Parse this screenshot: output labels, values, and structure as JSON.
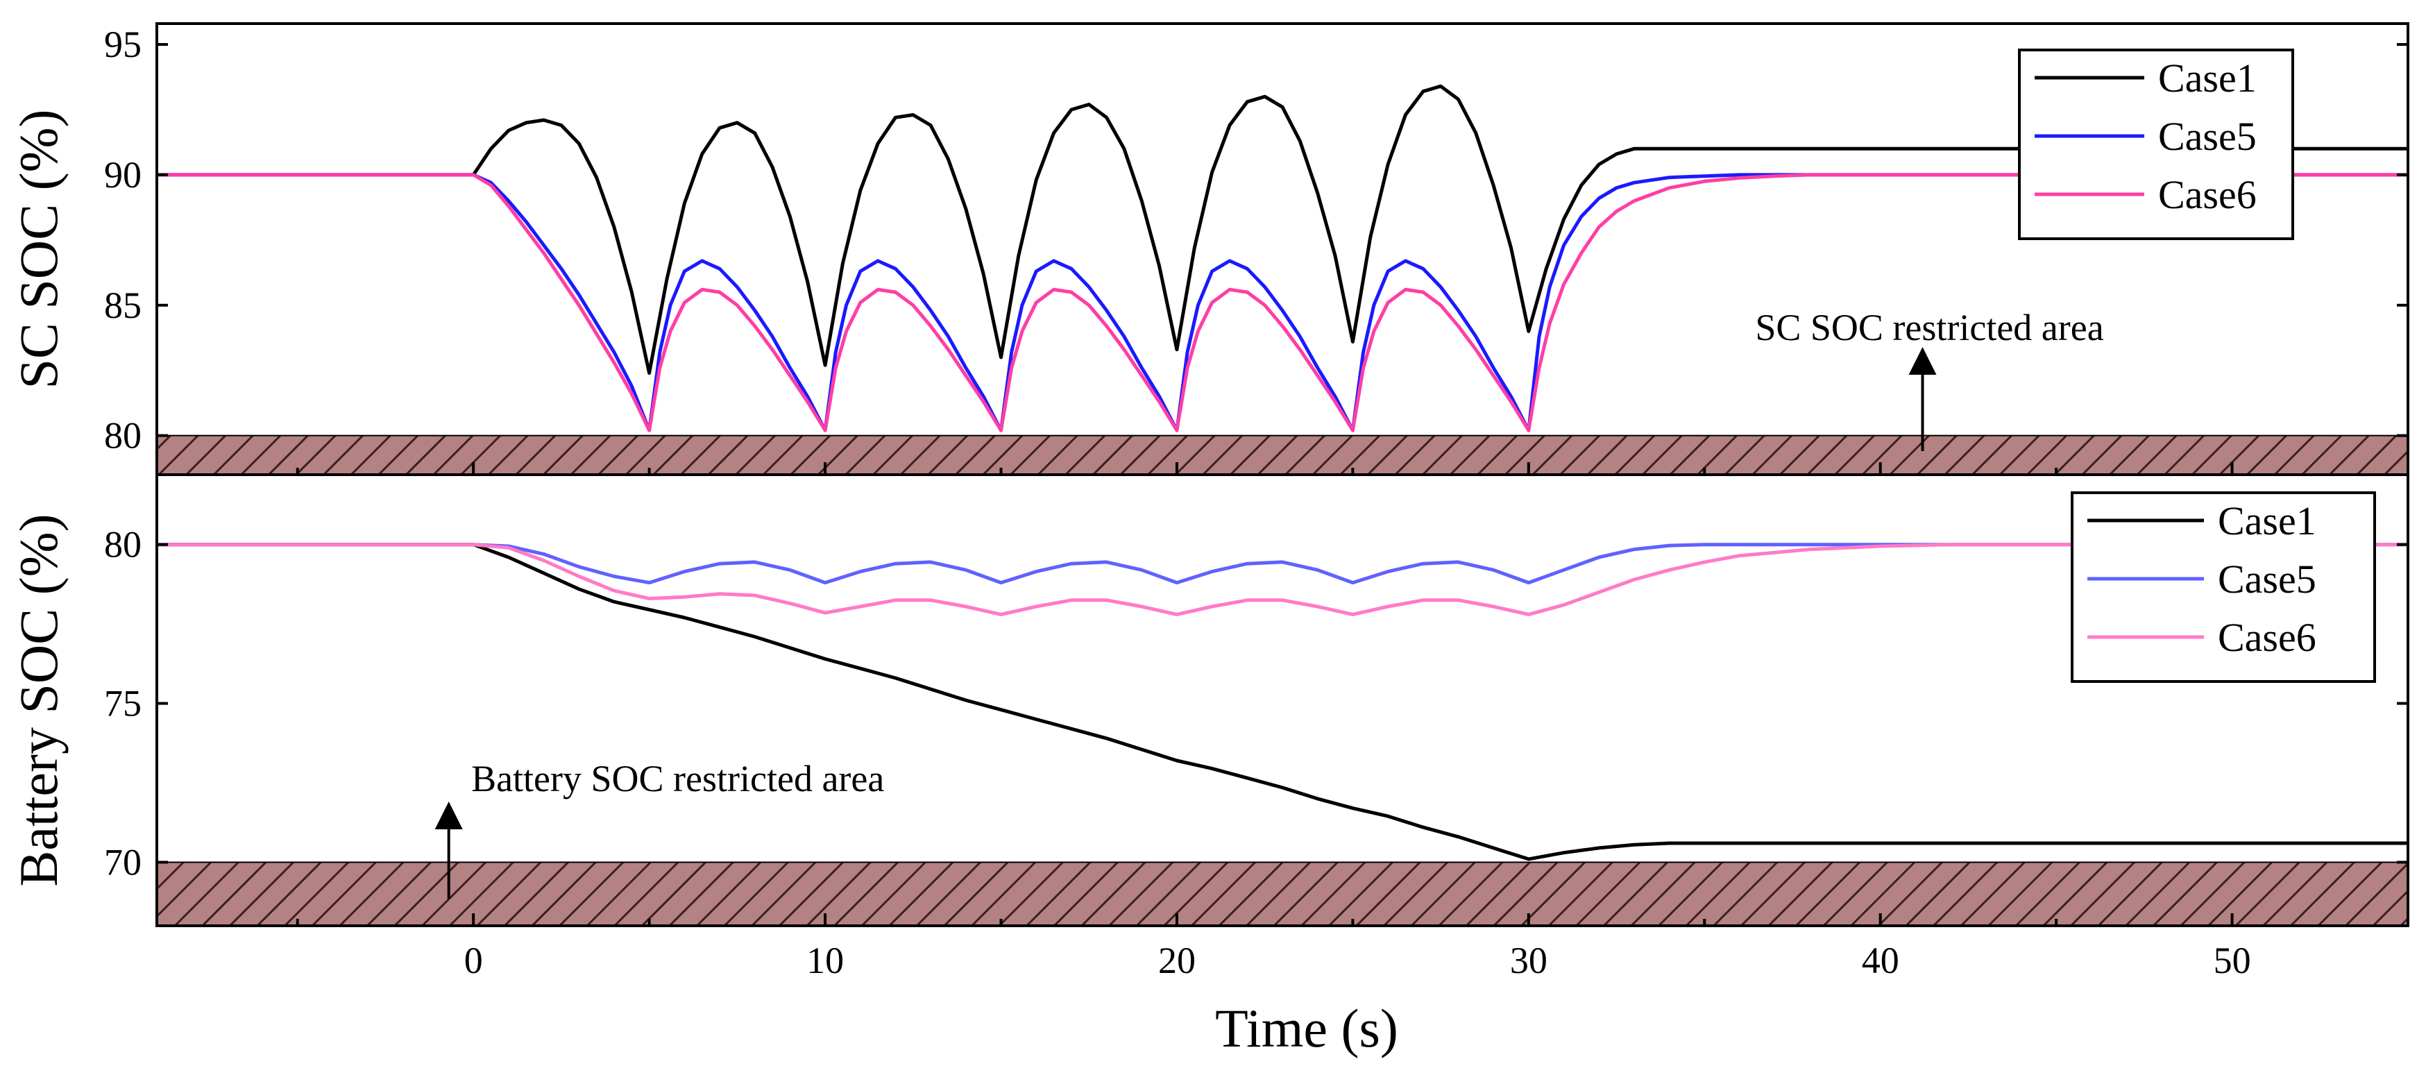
{
  "chart_data": [
    {
      "type": "line",
      "panel": "top",
      "ylabel": "SC SOC (%)",
      "xlim": [
        -9,
        55
      ],
      "ylim": [
        78.5,
        95.8
      ],
      "yticks": [
        80,
        85,
        90,
        95
      ],
      "restricted_area": {
        "ymin": 78.5,
        "ymax": 80,
        "label": "SC SOC restricted area",
        "arrow_x": 41.2
      },
      "legend": {
        "position": "top-right"
      },
      "series": [
        {
          "name": "Case1",
          "color": "#000000",
          "x": [
            -9,
            0,
            0.5,
            1,
            1.5,
            2,
            2.5,
            3,
            3.5,
            4,
            4.5,
            5,
            5.5,
            6,
            6.5,
            7,
            7.5,
            8,
            8.5,
            9,
            9.5,
            10,
            10.5,
            11,
            11.5,
            12,
            12.5,
            13,
            13.5,
            14,
            14.5,
            15,
            15.5,
            16,
            16.5,
            17,
            17.5,
            18,
            18.5,
            19,
            19.5,
            20,
            20.5,
            21,
            21.5,
            22,
            22.5,
            23,
            23.5,
            24,
            24.5,
            25,
            25.5,
            26,
            26.5,
            27,
            27.5,
            28,
            28.5,
            29,
            29.5,
            30,
            30.5,
            31,
            31.5,
            32,
            32.5,
            33,
            34,
            36,
            40,
            45,
            50,
            55
          ],
          "y": [
            90,
            90,
            91.0,
            91.7,
            92.0,
            92.1,
            91.9,
            91.2,
            89.9,
            88.0,
            85.5,
            82.4,
            86.0,
            88.9,
            90.8,
            91.8,
            92.0,
            91.6,
            90.3,
            88.4,
            85.9,
            82.7,
            86.6,
            89.4,
            91.2,
            92.2,
            92.3,
            91.9,
            90.6,
            88.7,
            86.2,
            83.0,
            86.9,
            89.8,
            91.6,
            92.5,
            92.7,
            92.2,
            91.0,
            89.0,
            86.5,
            83.3,
            87.2,
            90.1,
            91.9,
            92.8,
            93.0,
            92.6,
            91.3,
            89.3,
            86.9,
            83.6,
            87.6,
            90.4,
            92.3,
            93.2,
            93.4,
            92.9,
            91.6,
            89.6,
            87.2,
            84.0,
            86.4,
            88.3,
            89.6,
            90.4,
            90.8,
            91.0,
            91.0,
            91.0,
            91.0,
            91.0,
            91.0,
            91.0
          ]
        },
        {
          "name": "Case5",
          "color": "#1a1aff",
          "x": [
            -9,
            0,
            0.5,
            1,
            1.5,
            2,
            2.5,
            3,
            3.5,
            4,
            4.5,
            5,
            5.3,
            5.6,
            6,
            6.5,
            7,
            7.5,
            8,
            8.5,
            9,
            9.5,
            10,
            10.3,
            10.6,
            11,
            11.5,
            12,
            12.5,
            13,
            13.5,
            14,
            14.5,
            15,
            15.3,
            15.6,
            16,
            16.5,
            17,
            17.5,
            18,
            18.5,
            19,
            19.5,
            20,
            20.3,
            20.6,
            21,
            21.5,
            22,
            22.5,
            23,
            23.5,
            24,
            24.5,
            25,
            25.3,
            25.6,
            26,
            26.5,
            27,
            27.5,
            28,
            28.5,
            29,
            29.5,
            30,
            30.3,
            30.6,
            31,
            31.5,
            32,
            32.5,
            33,
            34,
            35,
            36,
            37,
            38,
            40,
            45,
            50,
            55
          ],
          "y": [
            90,
            90,
            89.7,
            89.0,
            88.2,
            87.3,
            86.4,
            85.4,
            84.3,
            83.2,
            81.9,
            80.2,
            83.2,
            85.0,
            86.3,
            86.7,
            86.4,
            85.7,
            84.8,
            83.8,
            82.6,
            81.5,
            80.2,
            83.2,
            85.0,
            86.3,
            86.7,
            86.4,
            85.7,
            84.8,
            83.8,
            82.6,
            81.5,
            80.2,
            83.2,
            85.0,
            86.3,
            86.7,
            86.4,
            85.7,
            84.8,
            83.8,
            82.6,
            81.5,
            80.2,
            83.2,
            85.0,
            86.3,
            86.7,
            86.4,
            85.7,
            84.8,
            83.8,
            82.6,
            81.5,
            80.2,
            83.2,
            85.0,
            86.3,
            86.7,
            86.4,
            85.7,
            84.8,
            83.8,
            82.6,
            81.5,
            80.2,
            83.8,
            85.7,
            87.3,
            88.4,
            89.1,
            89.5,
            89.7,
            89.9,
            89.95,
            90.0,
            90.0,
            90.0,
            90.0,
            90.0,
            90.0,
            90.0
          ]
        },
        {
          "name": "Case6",
          "color": "#ff3ea5",
          "x": [
            -9,
            0,
            0.5,
            1,
            1.5,
            2,
            2.5,
            3,
            3.5,
            4,
            4.5,
            5,
            5.3,
            5.6,
            6,
            6.5,
            7,
            7.5,
            8,
            8.5,
            9,
            9.5,
            10,
            10.3,
            10.6,
            11,
            11.5,
            12,
            12.5,
            13,
            13.5,
            14,
            14.5,
            15,
            15.3,
            15.6,
            16,
            16.5,
            17,
            17.5,
            18,
            18.5,
            19,
            19.5,
            20,
            20.3,
            20.6,
            21,
            21.5,
            22,
            22.5,
            23,
            23.5,
            24,
            24.5,
            25,
            25.3,
            25.6,
            26,
            26.5,
            27,
            27.5,
            28,
            28.5,
            29,
            29.5,
            30,
            30.3,
            30.6,
            31,
            31.5,
            32,
            32.5,
            33,
            34,
            35,
            36,
            37,
            38,
            40,
            45,
            50,
            55
          ],
          "y": [
            90,
            90,
            89.6,
            88.8,
            87.9,
            87.0,
            86.0,
            85.0,
            83.9,
            82.8,
            81.6,
            80.2,
            82.6,
            84.0,
            85.1,
            85.6,
            85.5,
            85.0,
            84.2,
            83.3,
            82.3,
            81.3,
            80.2,
            82.6,
            84.0,
            85.1,
            85.6,
            85.5,
            85.0,
            84.2,
            83.3,
            82.3,
            81.3,
            80.2,
            82.6,
            84.0,
            85.1,
            85.6,
            85.5,
            85.0,
            84.2,
            83.3,
            82.3,
            81.3,
            80.2,
            82.6,
            84.0,
            85.1,
            85.6,
            85.5,
            85.0,
            84.2,
            83.3,
            82.3,
            81.3,
            80.2,
            82.6,
            84.0,
            85.1,
            85.6,
            85.5,
            85.0,
            84.2,
            83.3,
            82.3,
            81.3,
            80.2,
            82.6,
            84.3,
            85.8,
            87.0,
            88.0,
            88.6,
            89.0,
            89.5,
            89.75,
            89.88,
            89.95,
            90.0,
            90.0,
            90.0,
            90.0,
            90.0
          ]
        }
      ]
    },
    {
      "type": "line",
      "panel": "bottom",
      "ylabel": "Battery SOC (%)",
      "xlabel": "Time (s)",
      "xlim": [
        -9,
        55
      ],
      "ylim": [
        68,
        82.2
      ],
      "xticks": [
        0,
        10,
        20,
        30,
        40,
        50
      ],
      "yticks": [
        70,
        75,
        80
      ],
      "restricted_area": {
        "ymin": 68,
        "ymax": 70,
        "label": "Battery SOC restricted area",
        "arrow_x": -0.7
      },
      "legend": {
        "position": "top-right"
      },
      "series": [
        {
          "name": "Case1",
          "color": "#000000",
          "x": [
            -9,
            0,
            1,
            2,
            3,
            4,
            5,
            6,
            7,
            8,
            9,
            10,
            11,
            12,
            13,
            14,
            15,
            16,
            17,
            18,
            19,
            20,
            21,
            22,
            23,
            24,
            25,
            26,
            27,
            28,
            29,
            30,
            31,
            32,
            33,
            34,
            35,
            55
          ],
          "y": [
            80,
            80,
            79.6,
            79.1,
            78.6,
            78.2,
            77.95,
            77.7,
            77.4,
            77.1,
            76.75,
            76.4,
            76.1,
            75.8,
            75.45,
            75.1,
            74.8,
            74.5,
            74.2,
            73.9,
            73.55,
            73.2,
            72.95,
            72.65,
            72.35,
            72.0,
            71.7,
            71.45,
            71.1,
            70.8,
            70.45,
            70.1,
            70.3,
            70.45,
            70.55,
            70.6,
            70.6,
            70.6
          ]
        },
        {
          "name": "Case5",
          "color": "#6161ff",
          "x": [
            -9,
            0,
            1,
            2,
            3,
            4,
            5,
            6,
            7,
            8,
            9,
            10,
            11,
            12,
            13,
            14,
            15,
            16,
            17,
            18,
            19,
            20,
            21,
            22,
            23,
            24,
            25,
            26,
            27,
            28,
            29,
            30,
            31,
            32,
            33,
            34,
            35,
            36,
            55
          ],
          "y": [
            80,
            80,
            79.95,
            79.7,
            79.3,
            79.0,
            78.8,
            79.15,
            79.4,
            79.45,
            79.2,
            78.8,
            79.15,
            79.4,
            79.45,
            79.2,
            78.8,
            79.15,
            79.4,
            79.45,
            79.2,
            78.8,
            79.15,
            79.4,
            79.45,
            79.2,
            78.8,
            79.15,
            79.4,
            79.45,
            79.2,
            78.8,
            79.2,
            79.6,
            79.85,
            79.97,
            80.0,
            80.0,
            80.0
          ]
        },
        {
          "name": "Case6",
          "color": "#ff7ac7",
          "x": [
            -9,
            0,
            1,
            2,
            3,
            4,
            5,
            6,
            7,
            8,
            9,
            10,
            11,
            12,
            13,
            14,
            15,
            16,
            17,
            18,
            19,
            20,
            21,
            22,
            23,
            24,
            25,
            26,
            27,
            28,
            29,
            30,
            31,
            32,
            33,
            34,
            35,
            36,
            38,
            40,
            42,
            44,
            55
          ],
          "y": [
            80,
            80,
            79.9,
            79.5,
            79.0,
            78.55,
            78.3,
            78.35,
            78.45,
            78.4,
            78.15,
            77.85,
            78.05,
            78.25,
            78.25,
            78.05,
            77.8,
            78.05,
            78.25,
            78.25,
            78.05,
            77.8,
            78.05,
            78.25,
            78.25,
            78.05,
            77.8,
            78.05,
            78.25,
            78.25,
            78.05,
            77.8,
            78.1,
            78.5,
            78.9,
            79.2,
            79.45,
            79.65,
            79.85,
            79.95,
            80.0,
            80.0,
            80.0
          ]
        }
      ]
    }
  ]
}
